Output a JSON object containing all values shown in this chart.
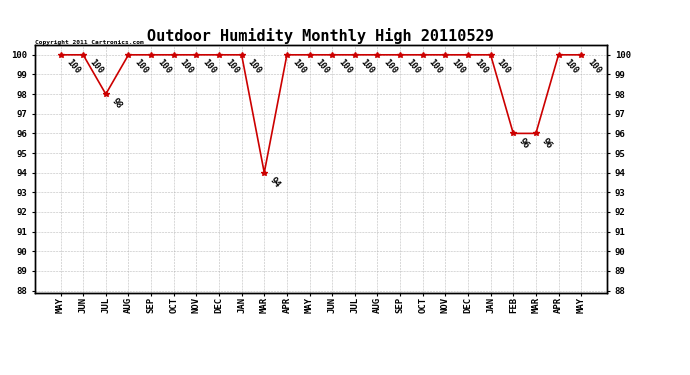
{
  "title": "Outdoor Humidity Monthly High 20110529",
  "copyright_text": "Copyright 2011 Cartronics.com",
  "x_labels": [
    "MAY",
    "JUN",
    "JUL",
    "AUG",
    "SEP",
    "OCT",
    "NOV",
    "DEC",
    "JAN",
    "MAR",
    "APR",
    "MAY",
    "JUN",
    "JUL",
    "AUG",
    "SEP",
    "OCT",
    "NOV",
    "DEC",
    "JAN",
    "FEB",
    "MAR",
    "APR",
    "MAY"
  ],
  "y_values": [
    100,
    100,
    98,
    100,
    100,
    100,
    100,
    100,
    100,
    94,
    100,
    100,
    100,
    100,
    100,
    100,
    100,
    100,
    100,
    100,
    96,
    96,
    100,
    100
  ],
  "ylim_min": 88,
  "ylim_max": 100,
  "ytick_step": 1,
  "line_color": "#cc0000",
  "marker": "*",
  "marker_color": "#cc0000",
  "marker_size": 4,
  "bg_color": "#ffffff",
  "grid_color": "#aaaaaa",
  "title_fontsize": 11,
  "label_fontsize": 6.5,
  "annotation_fontsize": 6.5,
  "right_axis_color": "#000000"
}
